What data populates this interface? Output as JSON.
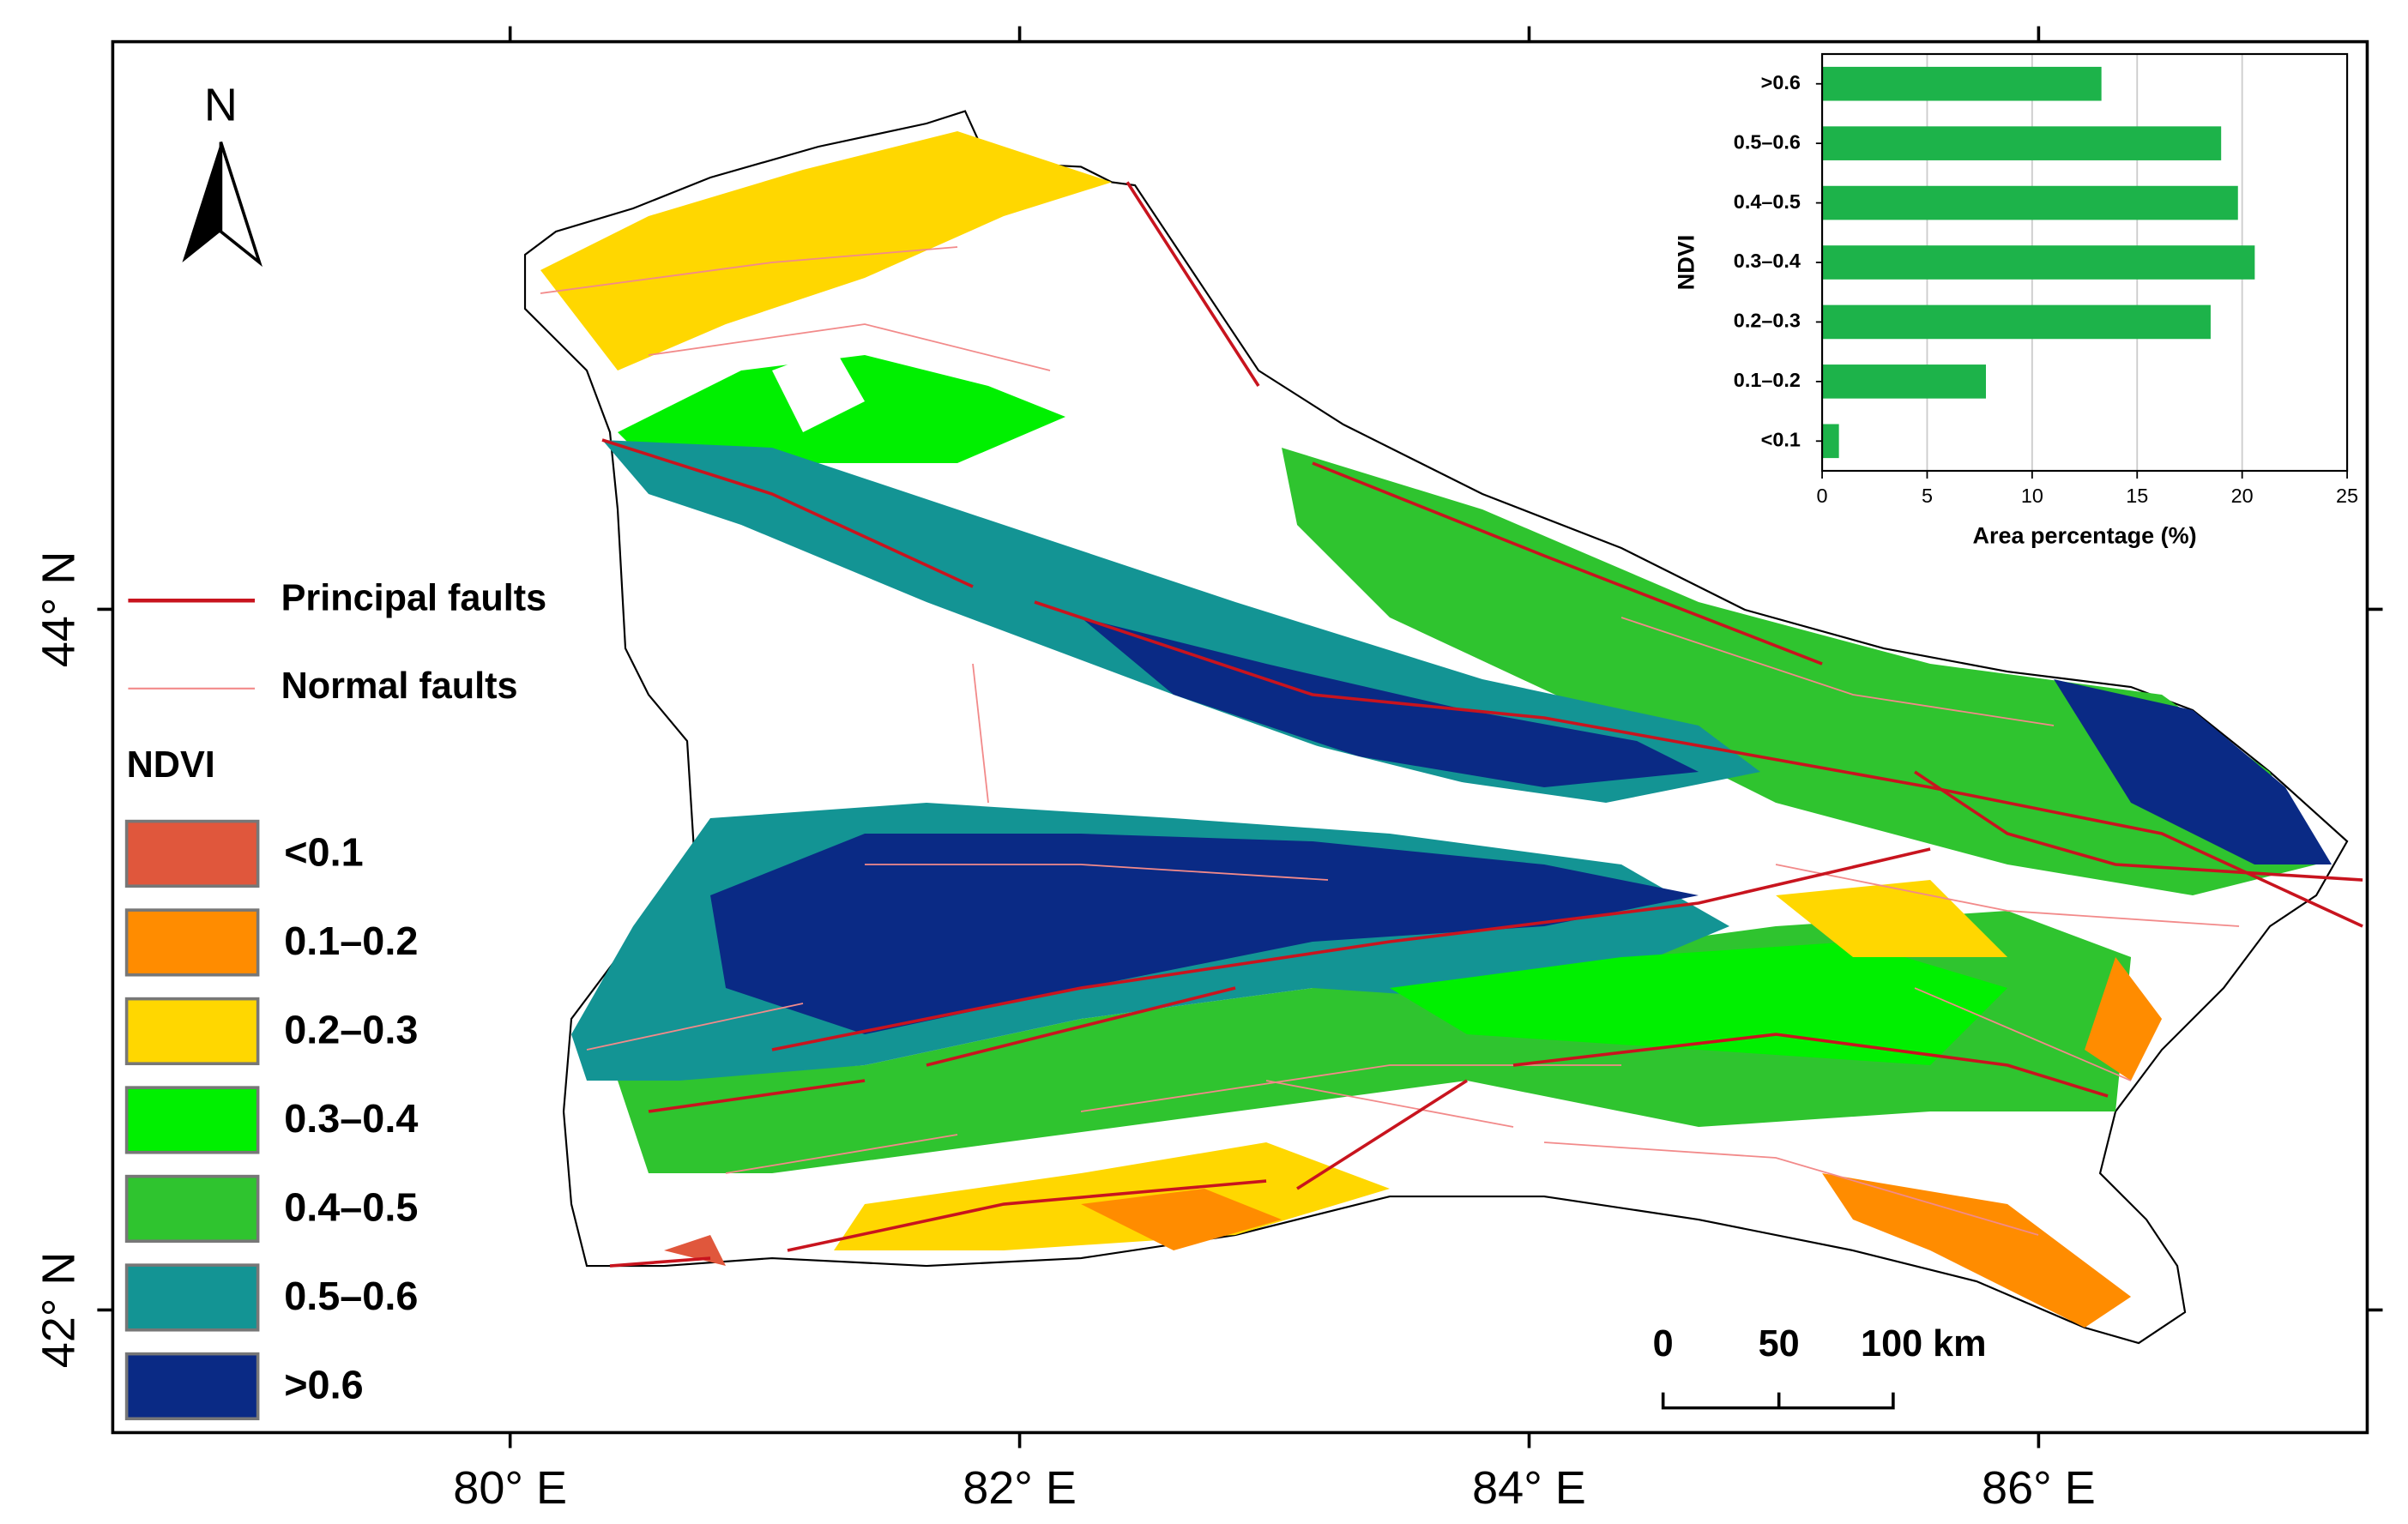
{
  "map": {
    "xlim": [
      78.44,
      87.29
    ],
    "ylim": [
      41.65,
      45.62
    ],
    "xticks": [
      {
        "value": 80,
        "label": "80° E"
      },
      {
        "value": 82,
        "label": "82° E"
      },
      {
        "value": 84,
        "label": "84° E"
      },
      {
        "value": 86,
        "label": "86° E"
      }
    ],
    "yticks": [
      {
        "value": 42,
        "label": "42° N"
      },
      {
        "value": 44,
        "label": "44° N"
      }
    ],
    "north_label": "N",
    "legend": {
      "faults": [
        {
          "name": "Principal faults",
          "color": "#c8141e"
        },
        {
          "name": "Normal faults",
          "color": "#f28a8a"
        }
      ],
      "ndvi_title": "NDVI",
      "classes": [
        {
          "label": "<0.1",
          "color": "#e0573c"
        },
        {
          "label": "0.1–0.2",
          "color": "#ff8c00"
        },
        {
          "label": "0.2–0.3",
          "color": "#ffd700"
        },
        {
          "label": "0.3–0.4",
          "color": "#00f000"
        },
        {
          "label": "0.4–0.5",
          "color": "#2fc42f"
        },
        {
          "label": "0.5–0.6",
          "color": "#139494"
        },
        {
          "label": ">0.6",
          "color": "#0a2a85"
        }
      ]
    },
    "scale_bar": [
      "0",
      "50",
      "100 km"
    ]
  },
  "chart_data": {
    "type": "bar",
    "orientation": "horizontal",
    "categories": [
      ">0.6",
      "0.5–0.6",
      "0.4–0.5",
      "0.3–0.4",
      "0.2–0.3",
      "0.1–0.2",
      "<0.1"
    ],
    "values": [
      13.3,
      19.0,
      19.8,
      20.6,
      18.5,
      7.8,
      0.8
    ],
    "color": "#1db34a",
    "xlim": [
      0,
      25
    ],
    "xticks": [
      0,
      5,
      10,
      15,
      20,
      25
    ],
    "xlabel": "Area percentage (%)",
    "ylabel": "NDVI",
    "grid": true
  }
}
